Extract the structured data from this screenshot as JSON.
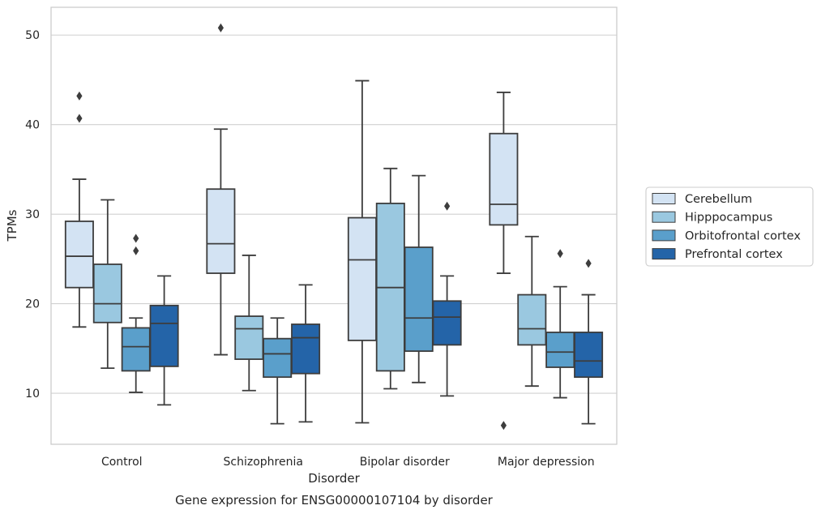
{
  "chart_data": {
    "type": "box",
    "caption": "Gene expression for ENSG00000107104 by disorder",
    "xlabel": "Disorder",
    "ylabel": "TPMs",
    "categories": [
      "Control",
      "Schizophrenia",
      "Bipolar disorder",
      "Major depression"
    ],
    "ylim": [
      4.3,
      53.1
    ],
    "yticks": [
      10,
      20,
      30,
      40,
      50
    ],
    "grid": true,
    "legend_position": "right",
    "series": [
      {
        "name": "Cerebellum",
        "color": "#d3e3f3",
        "boxes": [
          {
            "whisker_low": 17.4,
            "q1": 21.8,
            "median": 25.3,
            "q3": 29.2,
            "whisker_high": 33.9,
            "outliers": [
              40.7,
              43.2
            ]
          },
          {
            "whisker_low": 14.3,
            "q1": 23.4,
            "median": 26.7,
            "q3": 32.8,
            "whisker_high": 39.5,
            "outliers": [
              50.8
            ]
          },
          {
            "whisker_low": 6.7,
            "q1": 15.9,
            "median": 24.9,
            "q3": 29.6,
            "whisker_high": 44.9,
            "outliers": []
          },
          {
            "whisker_low": 23.4,
            "q1": 28.8,
            "median": 31.1,
            "q3": 39.0,
            "whisker_high": 43.6,
            "outliers": [
              6.4
            ]
          }
        ]
      },
      {
        "name": "Hipppocampus",
        "color": "#9ac8e0",
        "boxes": [
          {
            "whisker_low": 12.8,
            "q1": 17.9,
            "median": 20.0,
            "q3": 24.4,
            "whisker_high": 31.6,
            "outliers": []
          },
          {
            "whisker_low": 10.3,
            "q1": 13.8,
            "median": 17.2,
            "q3": 18.6,
            "whisker_high": 25.4,
            "outliers": []
          },
          {
            "whisker_low": 10.5,
            "q1": 12.5,
            "median": 21.8,
            "q3": 31.2,
            "whisker_high": 35.1,
            "outliers": []
          },
          {
            "whisker_low": 10.8,
            "q1": 15.4,
            "median": 17.2,
            "q3": 21.0,
            "whisker_high": 27.5,
            "outliers": []
          }
        ]
      },
      {
        "name": "Orbitofrontal cortex",
        "color": "#5a9fcb",
        "boxes": [
          {
            "whisker_low": 10.1,
            "q1": 12.5,
            "median": 15.2,
            "q3": 17.3,
            "whisker_high": 18.4,
            "outliers": [
              25.9,
              27.3
            ]
          },
          {
            "whisker_low": 6.6,
            "q1": 11.8,
            "median": 14.4,
            "q3": 16.1,
            "whisker_high": 18.4,
            "outliers": []
          },
          {
            "whisker_low": 11.2,
            "q1": 14.7,
            "median": 18.4,
            "q3": 26.3,
            "whisker_high": 34.3,
            "outliers": []
          },
          {
            "whisker_low": 9.5,
            "q1": 12.9,
            "median": 14.6,
            "q3": 16.8,
            "whisker_high": 21.9,
            "outliers": [
              25.6
            ]
          }
        ]
      },
      {
        "name": "Prefrontal cortex",
        "color": "#2464a8",
        "boxes": [
          {
            "whisker_low": 8.7,
            "q1": 13.0,
            "median": 17.8,
            "q3": 19.8,
            "whisker_high": 23.1,
            "outliers": []
          },
          {
            "whisker_low": 6.8,
            "q1": 12.2,
            "median": 16.2,
            "q3": 17.7,
            "whisker_high": 22.1,
            "outliers": []
          },
          {
            "whisker_low": 9.7,
            "q1": 15.4,
            "median": 18.5,
            "q3": 20.3,
            "whisker_high": 23.1,
            "outliers": [
              30.9
            ]
          },
          {
            "whisker_low": 6.6,
            "q1": 11.8,
            "median": 13.6,
            "q3": 16.8,
            "whisker_high": 21.0,
            "outliers": [
              24.5
            ]
          }
        ]
      }
    ]
  }
}
